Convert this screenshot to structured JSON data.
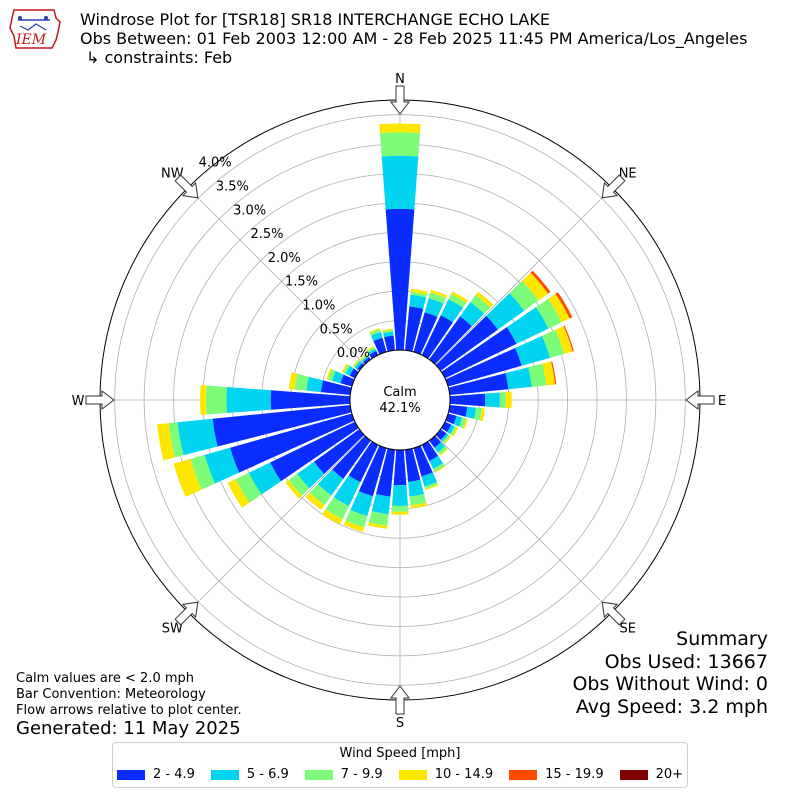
{
  "header": {
    "logo_text": "IEM",
    "title_line1": "Windrose Plot for [TSR18] SR18 INTERCHANGE ECHO LAKE",
    "title_line2": "Obs Between: 01 Feb 2003 12:00 AM - 28 Feb 2025 11:45 PM America/Los_Angeles",
    "title_line3": "↳ constraints: Feb"
  },
  "notes": {
    "line1": "Calm values are < 2.0 mph",
    "line2": "Bar Convention: Meteorology",
    "line3": "Flow arrows relative to plot center.",
    "generated": "Generated: 11 May 2025"
  },
  "summary": {
    "title": "Summary",
    "obs_used": "Obs Used: 13667",
    "obs_without_wind": "Obs Without Wind: 0",
    "avg_speed": "Avg Speed: 3.2 mph"
  },
  "chart_data": {
    "type": "windrose",
    "title": "Windrose Plot for [TSR18] SR18 INTERCHANGE ECHO LAKE",
    "calm_label": "Calm",
    "calm_value": "42.1%",
    "calm_percent": 42.1,
    "radial_ticks": [
      "0.0%",
      "0.5%",
      "1.0%",
      "1.5%",
      "2.0%",
      "2.5%",
      "3.0%",
      "3.5%",
      "4.0%"
    ],
    "radial_tick_values": [
      0,
      0.5,
      1.0,
      1.5,
      2.0,
      2.5,
      3.0,
      3.5,
      4.0
    ],
    "rlim": [
      0,
      4.25
    ],
    "compass_labels": [
      "N",
      "NE",
      "E",
      "SE",
      "S",
      "SW",
      "W",
      "NW"
    ],
    "legend_title": "Wind Speed [mph]",
    "legend_placement": "bottom",
    "bins": [
      {
        "label": "2 - 4.9",
        "color": "#0a2cff"
      },
      {
        "label": "5 - 6.9",
        "color": "#00d4f0"
      },
      {
        "label": "7 - 9.9",
        "color": "#7dfc7a"
      },
      {
        "label": "10 - 14.9",
        "color": "#ffe600"
      },
      {
        "label": "15 - 19.9",
        "color": "#ff4a00"
      },
      {
        "label": "20+",
        "color": "#800000"
      }
    ],
    "directions": [
      0,
      10,
      20,
      30,
      40,
      50,
      60,
      70,
      80,
      90,
      100,
      110,
      120,
      130,
      140,
      150,
      160,
      170,
      180,
      190,
      200,
      210,
      220,
      230,
      240,
      250,
      260,
      270,
      280,
      290,
      300,
      310,
      320,
      330,
      340,
      350
    ],
    "cumulative": [
      [
        2.4,
        3.3,
        3.7,
        3.85,
        3.85,
        3.85
      ],
      [
        0.75,
        0.95,
        1.0,
        1.05,
        1.05,
        1.05
      ],
      [
        0.7,
        0.95,
        1.05,
        1.1,
        1.1,
        1.1
      ],
      [
        0.75,
        1.05,
        1.15,
        1.2,
        1.2,
        1.2
      ],
      [
        0.9,
        1.2,
        1.35,
        1.42,
        1.42,
        1.42
      ],
      [
        1.2,
        1.75,
        2.05,
        2.25,
        2.3,
        2.3
      ],
      [
        1.35,
        1.95,
        2.2,
        2.35,
        2.4,
        2.4
      ],
      [
        1.3,
        1.8,
        2.05,
        2.2,
        2.22,
        2.22
      ],
      [
        1.0,
        1.4,
        1.65,
        1.8,
        1.82,
        1.82
      ],
      [
        0.6,
        0.85,
        0.95,
        1.05,
        1.05,
        1.05
      ],
      [
        0.3,
        0.45,
        0.55,
        0.6,
        0.6,
        0.6
      ],
      [
        0.15,
        0.25,
        0.32,
        0.35,
        0.35,
        0.35
      ],
      [
        0.12,
        0.18,
        0.22,
        0.25,
        0.25,
        0.25
      ],
      [
        0.12,
        0.16,
        0.2,
        0.22,
        0.22,
        0.22
      ],
      [
        0.15,
        0.25,
        0.3,
        0.32,
        0.32,
        0.32
      ],
      [
        0.3,
        0.45,
        0.5,
        0.52,
        0.52,
        0.52
      ],
      [
        0.5,
        0.68,
        0.72,
        0.74,
        0.74,
        0.74
      ],
      [
        0.55,
        0.8,
        0.95,
        1.0,
        1.0,
        1.0
      ],
      [
        0.6,
        0.95,
        1.05,
        1.1,
        1.1,
        1.1
      ],
      [
        0.8,
        1.1,
        1.3,
        1.35,
        1.35,
        1.35
      ],
      [
        0.85,
        1.2,
        1.4,
        1.48,
        1.48,
        1.48
      ],
      [
        0.7,
        1.15,
        1.4,
        1.5,
        1.5,
        1.5
      ],
      [
        0.8,
        1.15,
        1.35,
        1.45,
        1.45,
        1.45
      ],
      [
        0.95,
        1.3,
        1.48,
        1.55,
        1.55,
        1.55
      ],
      [
        1.6,
        2.0,
        2.25,
        2.4,
        2.4,
        2.4
      ],
      [
        2.15,
        2.6,
        2.85,
        3.15,
        3.15,
        3.15
      ],
      [
        2.35,
        2.95,
        3.1,
        3.3,
        3.3,
        3.3
      ],
      [
        1.35,
        2.1,
        2.45,
        2.55,
        2.55,
        2.55
      ],
      [
        0.5,
        0.75,
        0.95,
        1.05,
        1.05,
        1.05
      ],
      [
        0.2,
        0.35,
        0.42,
        0.45,
        0.45,
        0.45
      ],
      [
        0.1,
        0.18,
        0.22,
        0.25,
        0.25,
        0.25
      ],
      [
        0.05,
        0.1,
        0.12,
        0.14,
        0.14,
        0.14
      ],
      [
        0.05,
        0.08,
        0.1,
        0.12,
        0.12,
        0.12
      ],
      [
        0.08,
        0.12,
        0.15,
        0.17,
        0.17,
        0.17
      ],
      [
        0.25,
        0.35,
        0.4,
        0.42,
        0.42,
        0.42
      ],
      [
        0.25,
        0.32,
        0.35,
        0.37,
        0.37,
        0.37
      ]
    ],
    "grid": true
  }
}
